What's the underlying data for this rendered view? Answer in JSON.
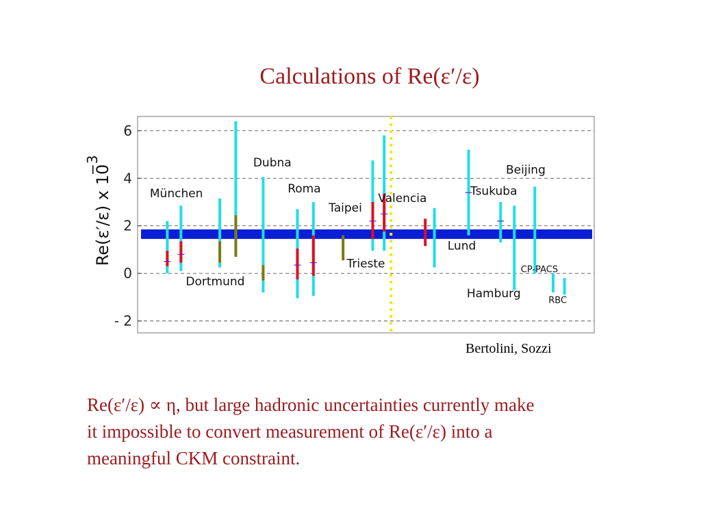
{
  "slide": {
    "title": "Calculations of Re(ε′/ε)",
    "credit": "Bertolini, Sozzi",
    "caption_lines": [
      "Re(ε′/ε) ∝ η, but large hadronic uncertainties currently make",
      "it impossible to convert measurement of Re(ε′/ε) into a",
      "meaningful CKM constraint."
    ]
  },
  "colors": {
    "title": "#9b1c20",
    "band": "#0a1ed6",
    "cyan": "#22dde8",
    "red": "#e01020",
    "olive": "#7d7a12",
    "marker": "#6a1ac8",
    "yellow_line": "#f2e81a",
    "grid": "#555555"
  },
  "chart_data": {
    "type": "error-bar",
    "ylabel": "Re(ε′/ε) x 10",
    "ylabel_exponent": "−3",
    "ylim": [
      -2.5,
      6.6
    ],
    "yticks": [
      -2,
      0,
      2,
      4,
      6
    ],
    "ytick_labels": [
      "- 2",
      "0",
      "2",
      "4",
      "6"
    ],
    "grid": "dashed horizontal at ticks",
    "band": {
      "low": 1.45,
      "high": 1.85,
      "color": "blue",
      "meaning": "experimental average"
    },
    "x_range": [
      0,
      20
    ],
    "vline": {
      "x": 11.1,
      "style": "dotted",
      "color": "yellow"
    },
    "group_labels": [
      {
        "text": "München",
        "x": 1.7,
        "y": 3.2,
        "size": "normal"
      },
      {
        "text": "Dortmund",
        "x": 3.4,
        "y": -0.5,
        "size": "normal"
      },
      {
        "text": "Dubna",
        "x": 5.9,
        "y": 4.5,
        "size": "normal"
      },
      {
        "text": "Roma",
        "x": 7.3,
        "y": 3.4,
        "size": "normal"
      },
      {
        "text": "Taipei",
        "x": 9.1,
        "y": 2.6,
        "size": "normal"
      },
      {
        "text": "Trieste",
        "x": 10.0,
        "y": 0.25,
        "size": "normal"
      },
      {
        "text": "Valencia",
        "x": 11.6,
        "y": 3.0,
        "size": "normal"
      },
      {
        "text": "Lund",
        "x": 14.2,
        "y": 1.0,
        "size": "normal"
      },
      {
        "text": "Tsukuba",
        "x": 15.6,
        "y": 3.3,
        "size": "normal"
      },
      {
        "text": "Beijing",
        "x": 17.0,
        "y": 4.2,
        "size": "normal"
      },
      {
        "text": "CP-PACS",
        "x": 17.6,
        "y": 0.05,
        "size": "small"
      },
      {
        "text": "Hamburg",
        "x": 15.6,
        "y": -1.0,
        "size": "normal"
      },
      {
        "text": "RBC",
        "x": 18.4,
        "y": -1.25,
        "size": "small"
      }
    ],
    "points": [
      {
        "x": 1.3,
        "cyan": [
          0.0,
          2.2
        ],
        "inner": [
          0.3,
          0.95
        ],
        "inner_color": "red",
        "center": 0.5
      },
      {
        "x": 1.9,
        "cyan": [
          0.1,
          2.85
        ],
        "inner": [
          0.45,
          1.35
        ],
        "inner_color": "red",
        "center": 0.8
      },
      {
        "x": 3.6,
        "cyan": [
          0.25,
          3.15
        ],
        "inner": [
          0.45,
          1.35
        ],
        "inner_color": "olive"
      },
      {
        "x": 4.3,
        "cyan": [
          0.7,
          6.4
        ],
        "inner": [
          0.7,
          2.45
        ],
        "inner_color": "olive"
      },
      {
        "x": 5.5,
        "cyan": [
          -0.8,
          4.05
        ],
        "inner": [
          -0.3,
          0.35
        ],
        "inner_color": "olive"
      },
      {
        "x": 7.0,
        "cyan": [
          -1.05,
          2.7
        ],
        "inner": [
          -0.25,
          1.05
        ],
        "inner_color": "red",
        "center": 0.35
      },
      {
        "x": 7.7,
        "cyan": [
          -0.95,
          3.0
        ],
        "inner": [
          -0.1,
          1.6
        ],
        "inner_color": "red",
        "center": 0.45
      },
      {
        "x": 9.0,
        "cyan": null,
        "inner": [
          0.55,
          1.6
        ],
        "inner_color": "olive"
      },
      {
        "x": 10.3,
        "cyan": [
          0.95,
          4.75
        ],
        "inner": [
          1.45,
          3.0
        ],
        "inner_color": "red",
        "center": 2.2
      },
      {
        "x": 10.8,
        "cyan": [
          0.95,
          5.8
        ],
        "inner": [
          1.75,
          3.35
        ],
        "inner_color": "red",
        "center": 2.5
      },
      {
        "x": 12.6,
        "cyan": null,
        "inner": [
          1.15,
          2.3
        ],
        "inner_color": "red"
      },
      {
        "x": 13.0,
        "cyan": [
          0.25,
          2.75
        ],
        "inner": null
      },
      {
        "x": 14.5,
        "cyan": [
          1.6,
          5.2
        ],
        "inner": null,
        "center": 3.4
      },
      {
        "x": 15.9,
        "cyan": [
          1.3,
          3.0
        ],
        "inner": null,
        "center": 2.2
      },
      {
        "x": 16.5,
        "cyan": [
          -0.7,
          2.85
        ],
        "inner": null
      },
      {
        "x": 17.4,
        "cyan": [
          0.0,
          3.65
        ],
        "inner": null
      },
      {
        "x": 18.2,
        "cyan": [
          -0.8,
          0.0
        ],
        "inner": null
      },
      {
        "x": 18.7,
        "cyan": [
          -0.9,
          -0.2
        ],
        "inner": null
      }
    ]
  }
}
